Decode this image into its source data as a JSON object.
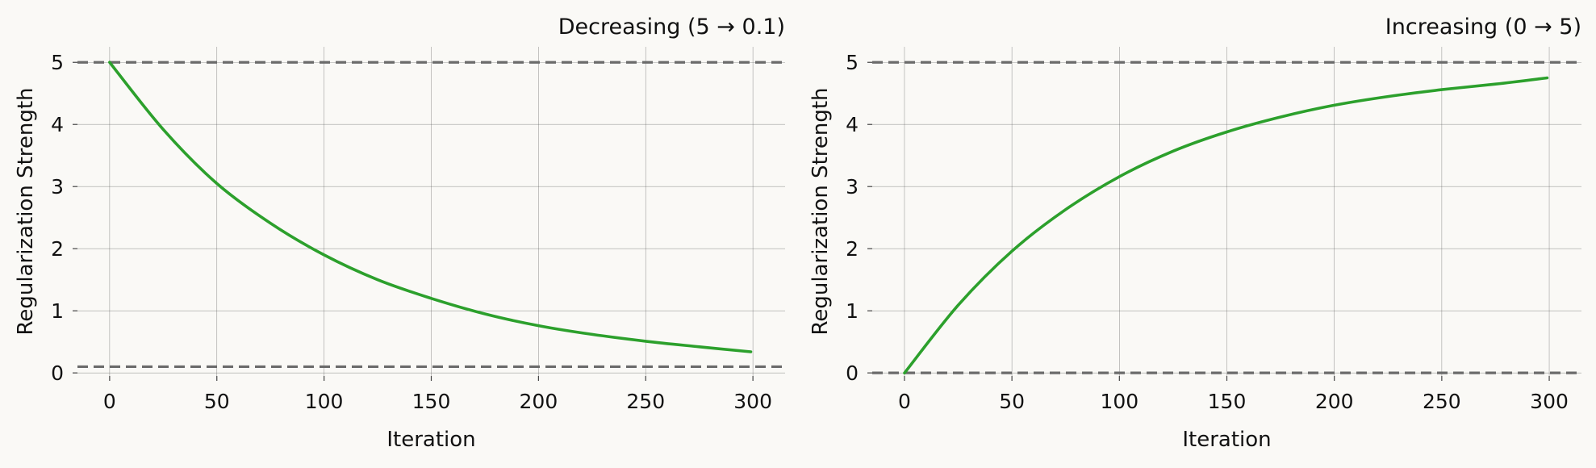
{
  "chart_data": [
    {
      "type": "line",
      "title": "Decreasing (5 → 0.1)",
      "xlabel": "Iteration",
      "ylabel": "Regularization Strength",
      "xlim": [
        -15,
        315
      ],
      "ylim": [
        -0.05,
        5.25
      ],
      "x_ticks": [
        0,
        50,
        100,
        150,
        200,
        250,
        300
      ],
      "y_ticks": [
        0,
        1,
        2,
        3,
        4,
        5
      ],
      "grid": true,
      "reference_lines": [
        5,
        0.1
      ],
      "series": [
        {
          "color": "#2ca02c",
          "x": [
            0,
            25,
            50,
            75,
            100,
            125,
            150,
            175,
            200,
            225,
            250,
            275,
            299
          ],
          "y": [
            5.0,
            3.92,
            3.05,
            2.41,
            1.9,
            1.5,
            1.2,
            0.95,
            0.76,
            0.62,
            0.51,
            0.42,
            0.34
          ]
        }
      ]
    },
    {
      "type": "line",
      "title": "Increasing (0 → 5)",
      "xlabel": "Iteration",
      "ylabel": "Regularization Strength",
      "xlim": [
        -15,
        315
      ],
      "ylim": [
        -0.05,
        5.25
      ],
      "x_ticks": [
        0,
        50,
        100,
        150,
        200,
        250,
        300
      ],
      "y_ticks": [
        0,
        1,
        2,
        3,
        4,
        5
      ],
      "grid": true,
      "reference_lines": [
        5,
        0
      ],
      "series": [
        {
          "color": "#2ca02c",
          "x": [
            0,
            25,
            50,
            75,
            100,
            125,
            150,
            175,
            200,
            225,
            250,
            275,
            299
          ],
          "y": [
            0.0,
            1.09,
            1.96,
            2.63,
            3.16,
            3.57,
            3.88,
            4.12,
            4.31,
            4.45,
            4.56,
            4.65,
            4.75
          ]
        }
      ]
    }
  ]
}
